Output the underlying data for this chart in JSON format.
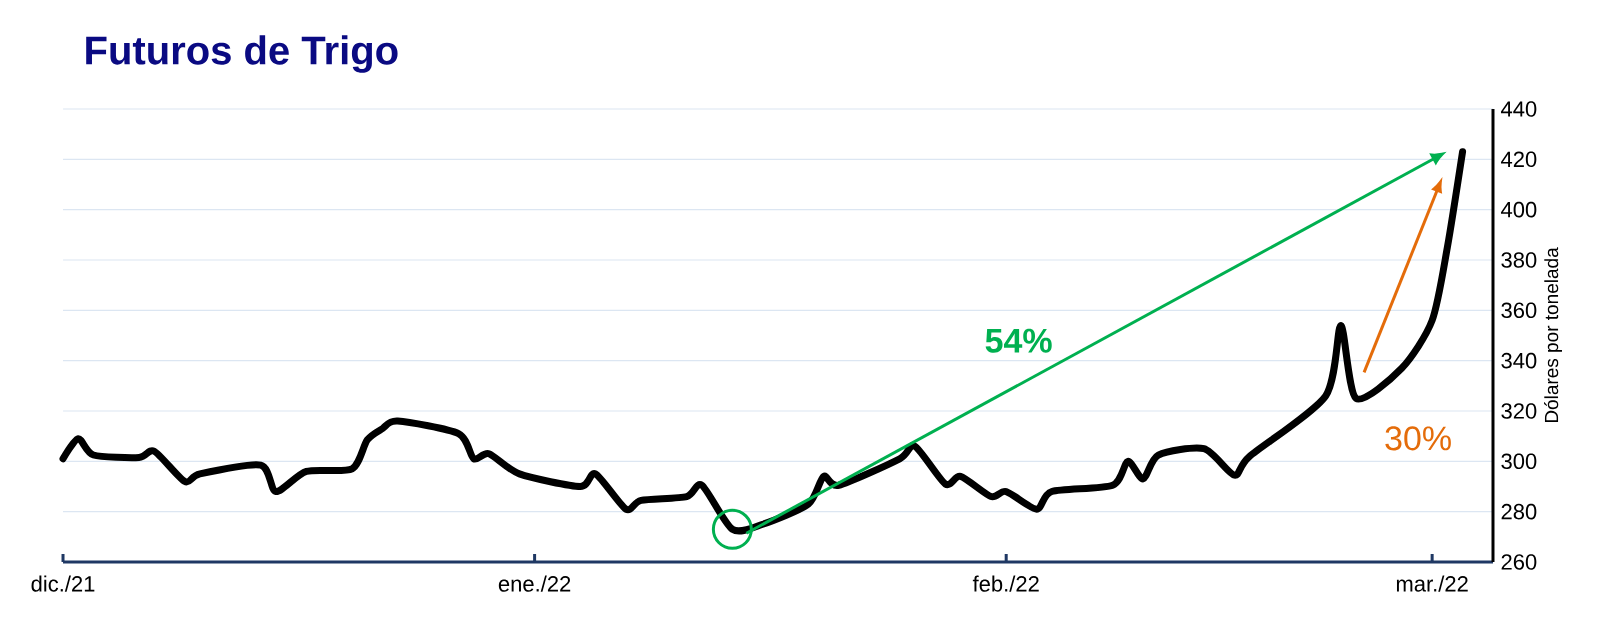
{
  "chart_data": {
    "type": "line",
    "title": "Futuros de  Trigo",
    "ylabel": "Dólares por tonelada",
    "color": "#000000",
    "x": [
      "2021-12-01",
      "2021-12-02",
      "2021-12-03",
      "2021-12-06",
      "2021-12-07",
      "2021-12-09",
      "2021-12-10",
      "2021-12-14",
      "2021-12-15",
      "2021-12-17",
      "2021-12-20",
      "2021-12-21",
      "2021-12-22",
      "2021-12-23",
      "2021-12-27",
      "2021-12-28",
      "2021-12-29",
      "2021-12-31",
      "2022-01-04",
      "2022-01-05",
      "2022-01-07",
      "2022-01-08",
      "2022-01-11",
      "2022-01-12",
      "2022-01-14",
      "2022-01-16",
      "2022-01-19",
      "2022-01-20",
      "2022-01-21",
      "2022-01-25",
      "2022-01-26",
      "2022-01-28",
      "2022-01-29",
      "2022-01-31",
      "2022-02-01",
      "2022-02-03",
      "2022-02-04",
      "2022-02-08",
      "2022-02-09",
      "2022-02-10",
      "2022-02-11",
      "2022-02-14",
      "2022-02-16",
      "2022-02-17",
      "2022-02-22",
      "2022-02-23",
      "2022-02-24",
      "2022-02-27",
      "2022-03-01",
      "2022-03-02",
      "2022-03-03"
    ],
    "values": [
      301,
      309,
      302.5,
      301.5,
      304,
      292,
      295,
      298.5,
      288,
      296,
      297,
      308.5,
      313,
      316,
      311,
      301,
      303,
      295,
      290,
      295,
      281,
      284.5,
      286,
      290.5,
      273,
      275,
      283,
      294,
      290.5,
      301,
      306,
      291,
      294,
      286,
      288,
      281,
      288,
      290.5,
      300,
      293,
      302.5,
      305,
      294.5,
      302,
      326,
      354,
      325,
      337,
      356,
      385,
      423
    ],
    "xlim": [
      "2021-12-01",
      "2022-03-05"
    ],
    "xticks": [
      {
        "value": "2021-12-01",
        "label": "dic./21"
      },
      {
        "value": "2022-01-01",
        "label": "ene./22"
      },
      {
        "value": "2022-02-01",
        "label": "feb./22"
      },
      {
        "value": "2022-03-01",
        "label": "mar./22"
      }
    ],
    "ylim": [
      260,
      440
    ],
    "yticks": [
      260,
      280,
      300,
      320,
      340,
      360,
      380,
      400,
      420,
      440
    ],
    "grid": "y",
    "annotations": [
      "54%",
      "30%"
    ]
  }
}
